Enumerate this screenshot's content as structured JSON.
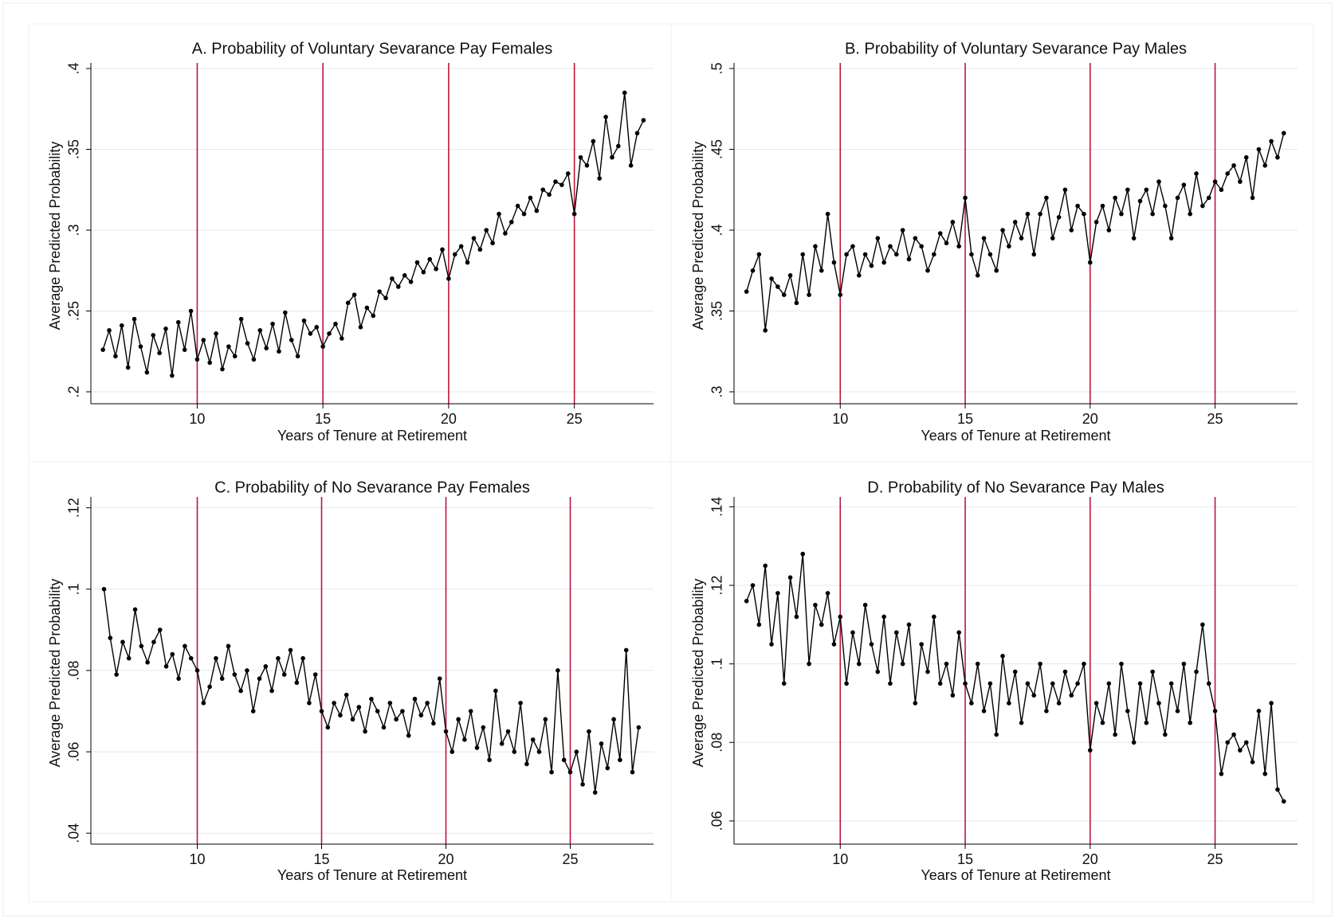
{
  "chart_data": [
    {
      "type": "line",
      "title": "A. Probability of Voluntary Sevarance Pay Females",
      "x_label": "Years of Tenure at Retirement",
      "y_label": "Average Predicted Probability",
      "xlim": [
        5.77,
        28.15
      ],
      "xticks": [
        10,
        15,
        20,
        25
      ],
      "ylim": [
        0.1926,
        0.4005
      ],
      "yticks": [
        {
          "value": 0.2,
          "label": ".2"
        },
        {
          "value": 0.25,
          "label": ".25"
        },
        {
          "value": 0.3,
          "label": ".3"
        },
        {
          "value": 0.35,
          "label": ".35"
        },
        {
          "value": 0.4,
          "label": ".4"
        }
      ],
      "grid": true,
      "color": "#000000",
      "xlines": [
        10,
        15,
        20,
        25
      ],
      "xline_color": "#c0143c",
      "x": [
        6.25,
        6.5,
        6.75,
        7,
        7.25,
        7.5,
        7.75,
        8,
        8.25,
        8.5,
        8.75,
        9,
        9.25,
        9.5,
        9.75,
        10,
        10.25,
        10.5,
        10.75,
        11,
        11.25,
        11.5,
        11.75,
        12,
        12.25,
        12.5,
        12.75,
        13,
        13.25,
        13.5,
        13.75,
        14,
        14.25,
        14.5,
        14.75,
        15,
        15.25,
        15.5,
        15.75,
        16,
        16.25,
        16.5,
        16.75,
        17,
        17.25,
        17.5,
        17.75,
        18,
        18.25,
        18.5,
        18.75,
        19,
        19.25,
        19.5,
        19.75,
        20,
        20.25,
        20.5,
        20.75,
        21,
        21.25,
        21.5,
        21.75,
        22,
        22.25,
        22.5,
        22.75,
        23,
        23.25,
        23.5,
        23.75,
        24,
        24.25,
        24.5,
        24.75,
        25,
        25.25,
        25.5,
        25.75,
        26,
        26.25,
        26.5,
        26.75,
        27,
        27.25,
        27.5,
        27.75
      ],
      "values": [
        0.226,
        0.238,
        0.222,
        0.241,
        0.215,
        0.245,
        0.228,
        0.212,
        0.235,
        0.224,
        0.239,
        0.21,
        0.243,
        0.226,
        0.25,
        0.22,
        0.232,
        0.218,
        0.236,
        0.214,
        0.228,
        0.222,
        0.245,
        0.23,
        0.22,
        0.238,
        0.227,
        0.242,
        0.225,
        0.249,
        0.232,
        0.222,
        0.244,
        0.236,
        0.24,
        0.228,
        0.236,
        0.242,
        0.233,
        0.255,
        0.26,
        0.24,
        0.252,
        0.247,
        0.262,
        0.258,
        0.27,
        0.265,
        0.272,
        0.268,
        0.28,
        0.274,
        0.282,
        0.276,
        0.288,
        0.27,
        0.285,
        0.29,
        0.28,
        0.295,
        0.288,
        0.3,
        0.292,
        0.31,
        0.298,
        0.305,
        0.315,
        0.31,
        0.32,
        0.312,
        0.325,
        0.322,
        0.33,
        0.328,
        0.335,
        0.31,
        0.345,
        0.34,
        0.355,
        0.332,
        0.37,
        0.345,
        0.352,
        0.385,
        0.34,
        0.36,
        0.368
      ]
    },
    {
      "type": "line",
      "title": "B. Probability of Voluntary Sevarance Pay Males",
      "x_label": "Years of Tenure at Retirement",
      "y_label": "Average Predicted Probability",
      "xlim": [
        5.75,
        28.3
      ],
      "xticks": [
        10,
        15,
        20,
        25
      ],
      "ylim": [
        0.2926,
        0.5005
      ],
      "yticks": [
        {
          "value": 0.3,
          "label": ".3"
        },
        {
          "value": 0.35,
          "label": ".35"
        },
        {
          "value": 0.4,
          "label": ".4"
        },
        {
          "value": 0.45,
          "label": ".45"
        },
        {
          "value": 0.5,
          "label": ".5"
        }
      ],
      "grid": true,
      "color": "#000000",
      "xlines": [
        10,
        15,
        20,
        25
      ],
      "xline_color": "#c0143c",
      "x": [
        6.25,
        6.5,
        6.75,
        7,
        7.25,
        7.5,
        7.75,
        8,
        8.25,
        8.5,
        8.75,
        9,
        9.25,
        9.5,
        9.75,
        10,
        10.25,
        10.5,
        10.75,
        11,
        11.25,
        11.5,
        11.75,
        12,
        12.25,
        12.5,
        12.75,
        13,
        13.25,
        13.5,
        13.75,
        14,
        14.25,
        14.5,
        14.75,
        15,
        15.25,
        15.5,
        15.75,
        16,
        16.25,
        16.5,
        16.75,
        17,
        17.25,
        17.5,
        17.75,
        18,
        18.25,
        18.5,
        18.75,
        19,
        19.25,
        19.5,
        19.75,
        20,
        20.25,
        20.5,
        20.75,
        21,
        21.25,
        21.5,
        21.75,
        22,
        22.25,
        22.5,
        22.75,
        23,
        23.25,
        23.5,
        23.75,
        24,
        24.25,
        24.5,
        24.75,
        25,
        25.25,
        25.5,
        25.75,
        26,
        26.25,
        26.5,
        26.75,
        27,
        27.25,
        27.5,
        27.75
      ],
      "values": [
        0.362,
        0.375,
        0.385,
        0.338,
        0.37,
        0.365,
        0.36,
        0.372,
        0.355,
        0.385,
        0.36,
        0.39,
        0.375,
        0.41,
        0.38,
        0.36,
        0.385,
        0.39,
        0.372,
        0.385,
        0.378,
        0.395,
        0.38,
        0.39,
        0.385,
        0.4,
        0.382,
        0.395,
        0.39,
        0.375,
        0.385,
        0.398,
        0.392,
        0.405,
        0.39,
        0.42,
        0.385,
        0.372,
        0.395,
        0.385,
        0.375,
        0.4,
        0.39,
        0.405,
        0.395,
        0.41,
        0.385,
        0.41,
        0.42,
        0.395,
        0.408,
        0.425,
        0.4,
        0.415,
        0.41,
        0.38,
        0.405,
        0.415,
        0.4,
        0.42,
        0.41,
        0.425,
        0.395,
        0.418,
        0.425,
        0.41,
        0.43,
        0.415,
        0.395,
        0.42,
        0.428,
        0.41,
        0.435,
        0.415,
        0.42,
        0.43,
        0.425,
        0.435,
        0.44,
        0.43,
        0.445,
        0.42,
        0.45,
        0.44,
        0.455,
        0.445,
        0.46
      ]
    },
    {
      "type": "line",
      "title": "C. Probability of No Sevarance Pay Females",
      "x_label": "Years of Tenure at Retirement",
      "y_label": "Average Predicted Probability",
      "xlim": [
        5.72,
        28.35
      ],
      "xticks": [
        10,
        15,
        20,
        25
      ],
      "ylim": [
        0.0373,
        0.1215
      ],
      "yticks": [
        {
          "value": 0.04,
          "label": ".04"
        },
        {
          "value": 0.06,
          "label": ".06"
        },
        {
          "value": 0.08,
          "label": ".08"
        },
        {
          "value": 0.1,
          "label": ".1"
        },
        {
          "value": 0.12,
          "label": ".12"
        }
      ],
      "grid": true,
      "color": "#000000",
      "xlines": [
        10,
        15,
        20,
        25
      ],
      "xline_color": "#c0143c",
      "x": [
        6.25,
        6.5,
        6.75,
        7,
        7.25,
        7.5,
        7.75,
        8,
        8.25,
        8.5,
        8.75,
        9,
        9.25,
        9.5,
        9.75,
        10,
        10.25,
        10.5,
        10.75,
        11,
        11.25,
        11.5,
        11.75,
        12,
        12.25,
        12.5,
        12.75,
        13,
        13.25,
        13.5,
        13.75,
        14,
        14.25,
        14.5,
        14.75,
        15,
        15.25,
        15.5,
        15.75,
        16,
        16.25,
        16.5,
        16.75,
        17,
        17.25,
        17.5,
        17.75,
        18,
        18.25,
        18.5,
        18.75,
        19,
        19.25,
        19.5,
        19.75,
        20,
        20.25,
        20.5,
        20.75,
        21,
        21.25,
        21.5,
        21.75,
        22,
        22.25,
        22.5,
        22.75,
        23,
        23.25,
        23.5,
        23.75,
        24,
        24.25,
        24.5,
        24.75,
        25,
        25.25,
        25.5,
        25.75,
        26,
        26.25,
        26.5,
        26.75,
        27,
        27.25,
        27.5,
        27.75
      ],
      "values": [
        0.1,
        0.088,
        0.079,
        0.087,
        0.083,
        0.095,
        0.086,
        0.082,
        0.087,
        0.09,
        0.081,
        0.084,
        0.078,
        0.086,
        0.083,
        0.08,
        0.072,
        0.076,
        0.083,
        0.078,
        0.086,
        0.079,
        0.075,
        0.08,
        0.07,
        0.078,
        0.081,
        0.075,
        0.083,
        0.079,
        0.085,
        0.077,
        0.083,
        0.072,
        0.079,
        0.07,
        0.066,
        0.072,
        0.069,
        0.074,
        0.068,
        0.071,
        0.065,
        0.073,
        0.07,
        0.066,
        0.072,
        0.068,
        0.07,
        0.064,
        0.073,
        0.069,
        0.072,
        0.067,
        0.078,
        0.065,
        0.06,
        0.068,
        0.063,
        0.07,
        0.061,
        0.066,
        0.058,
        0.075,
        0.062,
        0.065,
        0.06,
        0.072,
        0.057,
        0.063,
        0.06,
        0.068,
        0.055,
        0.08,
        0.058,
        0.055,
        0.06,
        0.052,
        0.065,
        0.05,
        0.062,
        0.056,
        0.068,
        0.058,
        0.085,
        0.055,
        0.066
      ]
    },
    {
      "type": "line",
      "title": "D. Probability of No Sevarance Pay Males",
      "x_label": "Years of Tenure at Retirement",
      "y_label": "Average Predicted Probability",
      "xlim": [
        5.75,
        28.3
      ],
      "xticks": [
        10,
        15,
        20,
        25
      ],
      "ylim": [
        0.0541,
        0.1413
      ],
      "yticks": [
        {
          "value": 0.06,
          "label": ".06"
        },
        {
          "value": 0.08,
          "label": ".08"
        },
        {
          "value": 0.1,
          "label": ".1"
        },
        {
          "value": 0.12,
          "label": ".12"
        },
        {
          "value": 0.14,
          "label": ".14"
        }
      ],
      "grid": true,
      "color": "#000000",
      "xlines": [
        10,
        15,
        20,
        25
      ],
      "xline_color": "#c0143c",
      "x": [
        6.25,
        6.5,
        6.75,
        7,
        7.25,
        7.5,
        7.75,
        8,
        8.25,
        8.5,
        8.75,
        9,
        9.25,
        9.5,
        9.75,
        10,
        10.25,
        10.5,
        10.75,
        11,
        11.25,
        11.5,
        11.75,
        12,
        12.25,
        12.5,
        12.75,
        13,
        13.25,
        13.5,
        13.75,
        14,
        14.25,
        14.5,
        14.75,
        15,
        15.25,
        15.5,
        15.75,
        16,
        16.25,
        16.5,
        16.75,
        17,
        17.25,
        17.5,
        17.75,
        18,
        18.25,
        18.5,
        18.75,
        19,
        19.25,
        19.5,
        19.75,
        20,
        20.25,
        20.5,
        20.75,
        21,
        21.25,
        21.5,
        21.75,
        22,
        22.25,
        22.5,
        22.75,
        23,
        23.25,
        23.5,
        23.75,
        24,
        24.25,
        24.5,
        24.75,
        25,
        25.25,
        25.5,
        25.75,
        26,
        26.25,
        26.5,
        26.75,
        27,
        27.25,
        27.5,
        27.75
      ],
      "values": [
        0.116,
        0.12,
        0.11,
        0.125,
        0.105,
        0.118,
        0.095,
        0.122,
        0.112,
        0.128,
        0.1,
        0.115,
        0.11,
        0.118,
        0.105,
        0.112,
        0.095,
        0.108,
        0.1,
        0.115,
        0.105,
        0.098,
        0.112,
        0.095,
        0.108,
        0.1,
        0.11,
        0.09,
        0.105,
        0.098,
        0.112,
        0.095,
        0.1,
        0.092,
        0.108,
        0.095,
        0.09,
        0.1,
        0.088,
        0.095,
        0.082,
        0.102,
        0.09,
        0.098,
        0.085,
        0.095,
        0.092,
        0.1,
        0.088,
        0.095,
        0.09,
        0.098,
        0.092,
        0.095,
        0.1,
        0.078,
        0.09,
        0.085,
        0.095,
        0.082,
        0.1,
        0.088,
        0.08,
        0.095,
        0.085,
        0.098,
        0.09,
        0.082,
        0.095,
        0.088,
        0.1,
        0.085,
        0.098,
        0.11,
        0.095,
        0.088,
        0.072,
        0.08,
        0.082,
        0.078,
        0.08,
        0.075,
        0.088,
        0.072,
        0.09,
        0.068,
        0.065
      ]
    }
  ]
}
